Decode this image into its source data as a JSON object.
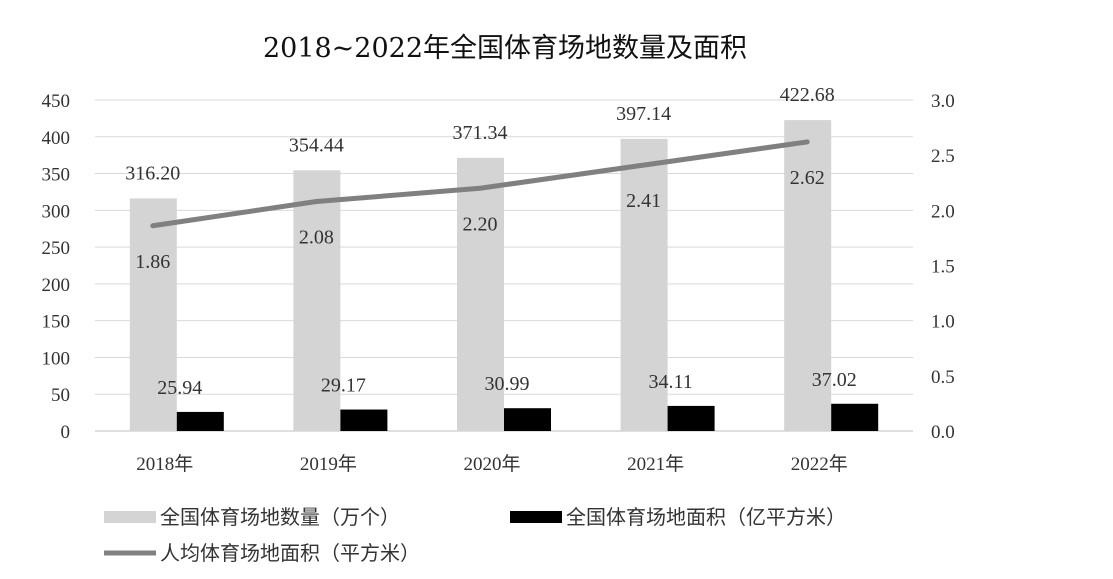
{
  "chart_data": {
    "type": "bar",
    "title": "2018~2022年全国体育场地数量及面积",
    "categories": [
      "2018年",
      "2019年",
      "2020年",
      "2021年",
      "2022年"
    ],
    "series": [
      {
        "name": "全国体育场地数量（万个）",
        "type": "bar",
        "axis": "left",
        "color": "#d4d4d4",
        "values": [
          316.2,
          354.44,
          371.34,
          397.14,
          422.68
        ],
        "labels": [
          "316.20",
          "354.44",
          "371.34",
          "397.14",
          "422.68"
        ]
      },
      {
        "name": "全国体育场地面积（亿平方米）",
        "type": "bar",
        "axis": "left",
        "color": "#000000",
        "values": [
          25.94,
          29.17,
          30.99,
          34.11,
          37.02
        ],
        "labels": [
          "25.94",
          "29.17",
          "30.99",
          "34.11",
          "37.02"
        ]
      },
      {
        "name": "人均体育场地面积（平方米）",
        "type": "line",
        "axis": "right",
        "color": "#808080",
        "values": [
          1.86,
          2.08,
          2.2,
          2.41,
          2.62
        ],
        "labels": [
          "1.86",
          "2.08",
          "2.20",
          "2.41",
          "2.62"
        ]
      }
    ],
    "y_left": {
      "min": 0,
      "max": 450,
      "ticks": [
        "0",
        "50",
        "100",
        "150",
        "200",
        "250",
        "300",
        "350",
        "400",
        "450"
      ]
    },
    "y_right": {
      "min": 0,
      "max": 3.0,
      "ticks": [
        "0.0",
        "0.5",
        "1.0",
        "1.5",
        "2.0",
        "2.5",
        "3.0"
      ]
    },
    "grid": true,
    "legend": "bottom"
  }
}
